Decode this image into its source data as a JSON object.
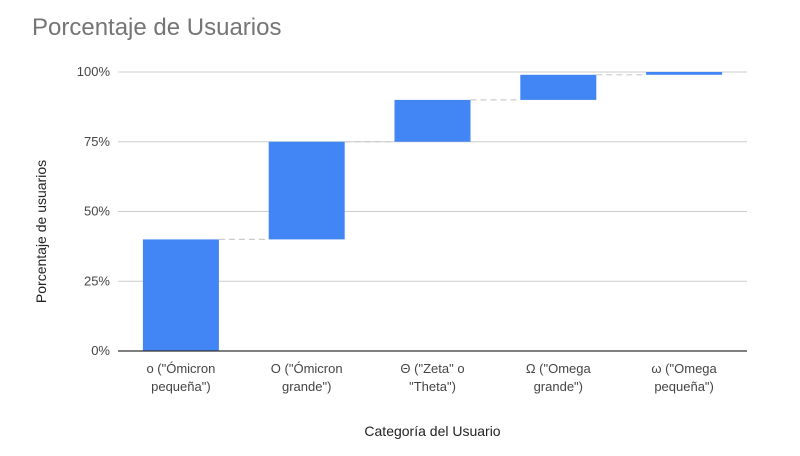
{
  "chart_data": {
    "type": "bar",
    "subtype": "waterfall",
    "title": "Porcentaje de Usuarios",
    "xlabel": "Categoría del Usuario",
    "ylabel": "Porcentaje de usuarios",
    "ylim": [
      0,
      100
    ],
    "yticks": [
      "0%",
      "25%",
      "50%",
      "75%",
      "100%"
    ],
    "ytick_values": [
      0,
      25,
      50,
      75,
      100
    ],
    "grid": true,
    "categories": [
      [
        "o (\"Ómicron",
        "pequeña\")"
      ],
      [
        "O (\"Ómicron",
        "grande\")"
      ],
      [
        "Θ (\"Zeta\" o",
        "\"Theta\")"
      ],
      [
        "Ω (\"Omega",
        "grande\")"
      ],
      [
        "ω (\"Omega",
        "pequeña\")"
      ]
    ],
    "values": [
      40,
      35,
      15,
      9,
      1
    ],
    "cumulative_end": [
      40,
      75,
      90,
      99,
      100
    ],
    "bar_color": "#4285f4",
    "connector_color": "#cccccc"
  }
}
